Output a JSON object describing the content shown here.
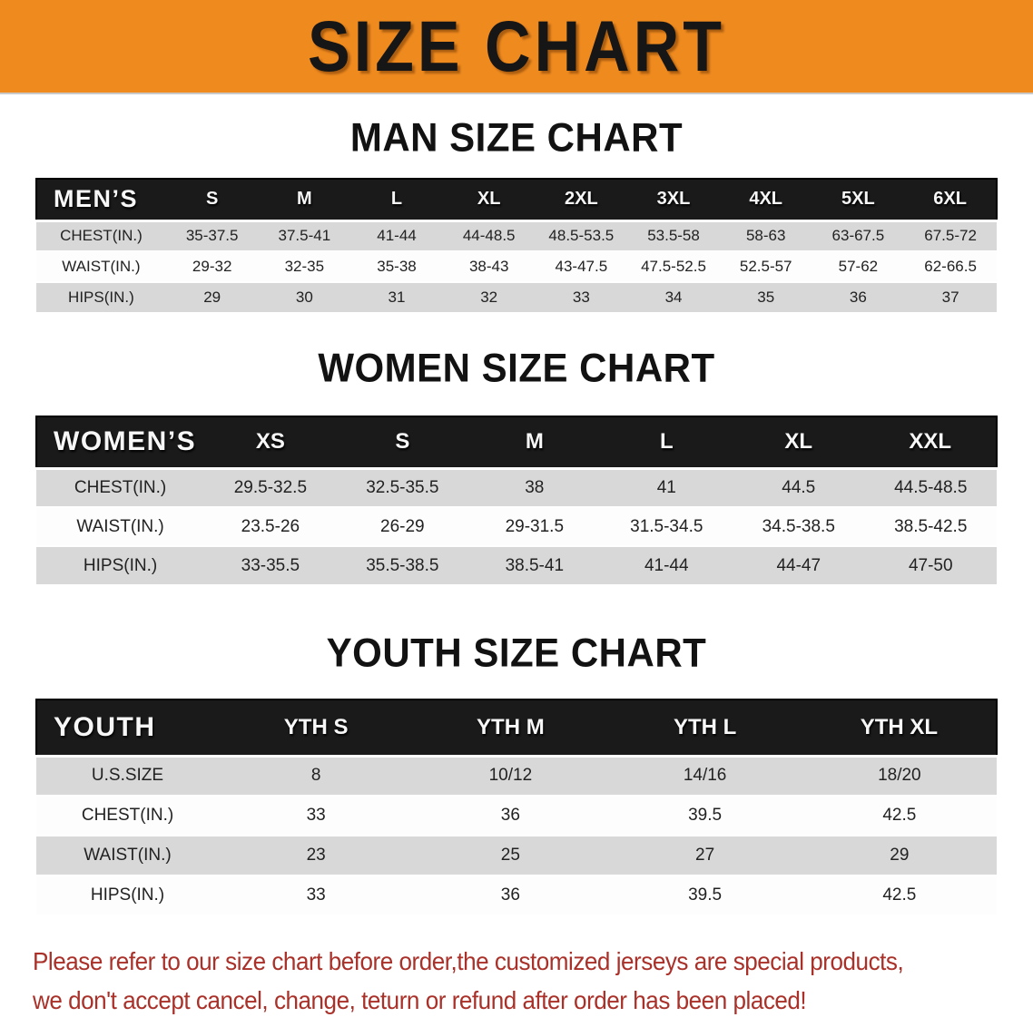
{
  "banner": {
    "title": "SIZE CHART",
    "bg_color": "#EE8A1E"
  },
  "sections": [
    {
      "heading": "MAN SIZE CHART",
      "group_label": "MEN’S",
      "sizes": [
        "S",
        "M",
        "L",
        "XL",
        "2XL",
        "3XL",
        "4XL",
        "5XL",
        "6XL"
      ],
      "rows": [
        {
          "label": "CHEST(IN.)",
          "values": [
            "35-37.5",
            "37.5-41",
            "41-44",
            "44-48.5",
            "48.5-53.5",
            "53.5-58",
            "58-63",
            "63-67.5",
            "67.5-72"
          ]
        },
        {
          "label": "WAIST(IN.)",
          "values": [
            "29-32",
            "32-35",
            "35-38",
            "38-43",
            "43-47.5",
            "47.5-52.5",
            "52.5-57",
            "57-62",
            "62-66.5"
          ]
        },
        {
          "label": "HIPS(IN.)",
          "values": [
            "29",
            "30",
            "31",
            "32",
            "33",
            "34",
            "35",
            "36",
            "37"
          ]
        }
      ]
    },
    {
      "heading": "WOMEN SIZE CHART",
      "group_label": "WOMEN’S",
      "sizes": [
        "XS",
        "S",
        "M",
        "L",
        "XL",
        "XXL"
      ],
      "rows": [
        {
          "label": "CHEST(IN.)",
          "values": [
            "29.5-32.5",
            "32.5-35.5",
            "38",
            "41",
            "44.5",
            "44.5-48.5"
          ]
        },
        {
          "label": "WAIST(IN.)",
          "values": [
            "23.5-26",
            "26-29",
            "29-31.5",
            "31.5-34.5",
            "34.5-38.5",
            "38.5-42.5"
          ]
        },
        {
          "label": "HIPS(IN.)",
          "values": [
            "33-35.5",
            "35.5-38.5",
            "38.5-41",
            "41-44",
            "44-47",
            "47-50"
          ]
        }
      ]
    },
    {
      "heading": "YOUTH SIZE CHART",
      "group_label": "YOUTH",
      "sizes": [
        "YTH S",
        "YTH M",
        "YTH L",
        "YTH XL"
      ],
      "rows": [
        {
          "label": "U.S.SIZE",
          "values": [
            "8",
            "10/12",
            "14/16",
            "18/20"
          ]
        },
        {
          "label": "CHEST(IN.)",
          "values": [
            "33",
            "36",
            "39.5",
            "42.5"
          ]
        },
        {
          "label": "WAIST(IN.)",
          "values": [
            "23",
            "25",
            "27",
            "29"
          ]
        },
        {
          "label": "HIPS(IN.)",
          "values": [
            "33",
            "36",
            "39.5",
            "42.5"
          ]
        }
      ]
    }
  ],
  "disclaimer": {
    "line1": "Please refer to our size chart before order,the customized jerseys are special products,",
    "line2": "we don't accept cancel, change, teturn or refund after order has been placed!",
    "color": "#A93129"
  }
}
